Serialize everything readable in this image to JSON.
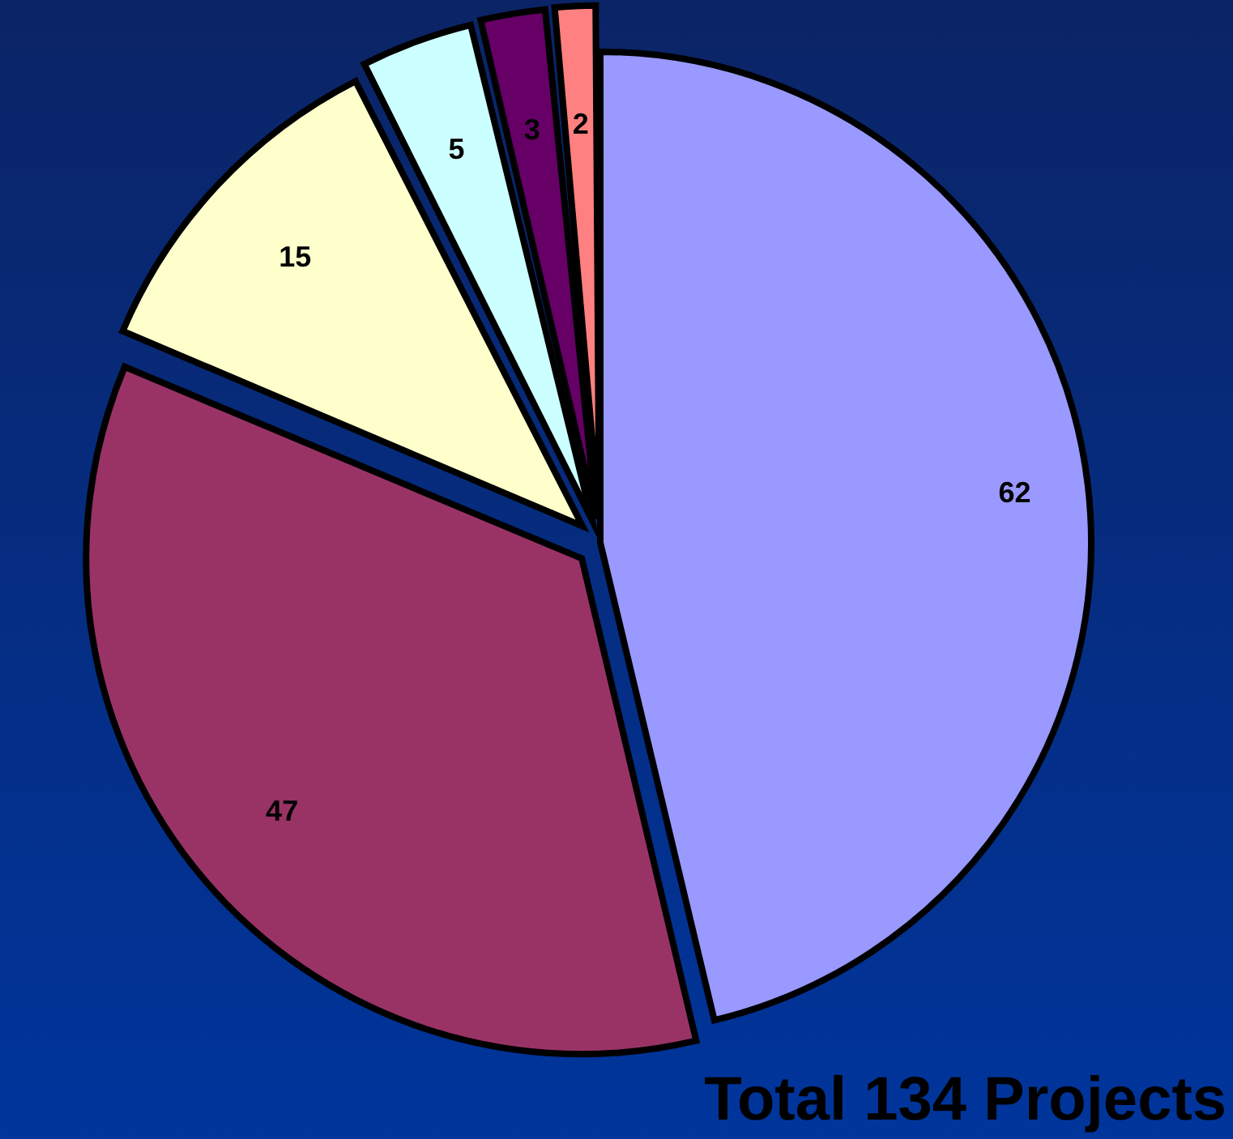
{
  "chart_data": {
    "type": "pie",
    "categories": [
      null,
      null,
      null,
      null,
      null,
      null
    ],
    "values": [
      62,
      47,
      15,
      5,
      3,
      2
    ],
    "colors": [
      "#9999ff",
      "#993366",
      "#ffffcc",
      "#ccffff",
      "#660066",
      "#ff8080"
    ],
    "data_labels": true,
    "legend": false,
    "annotations": [
      "Total 134 Projects"
    ]
  }
}
